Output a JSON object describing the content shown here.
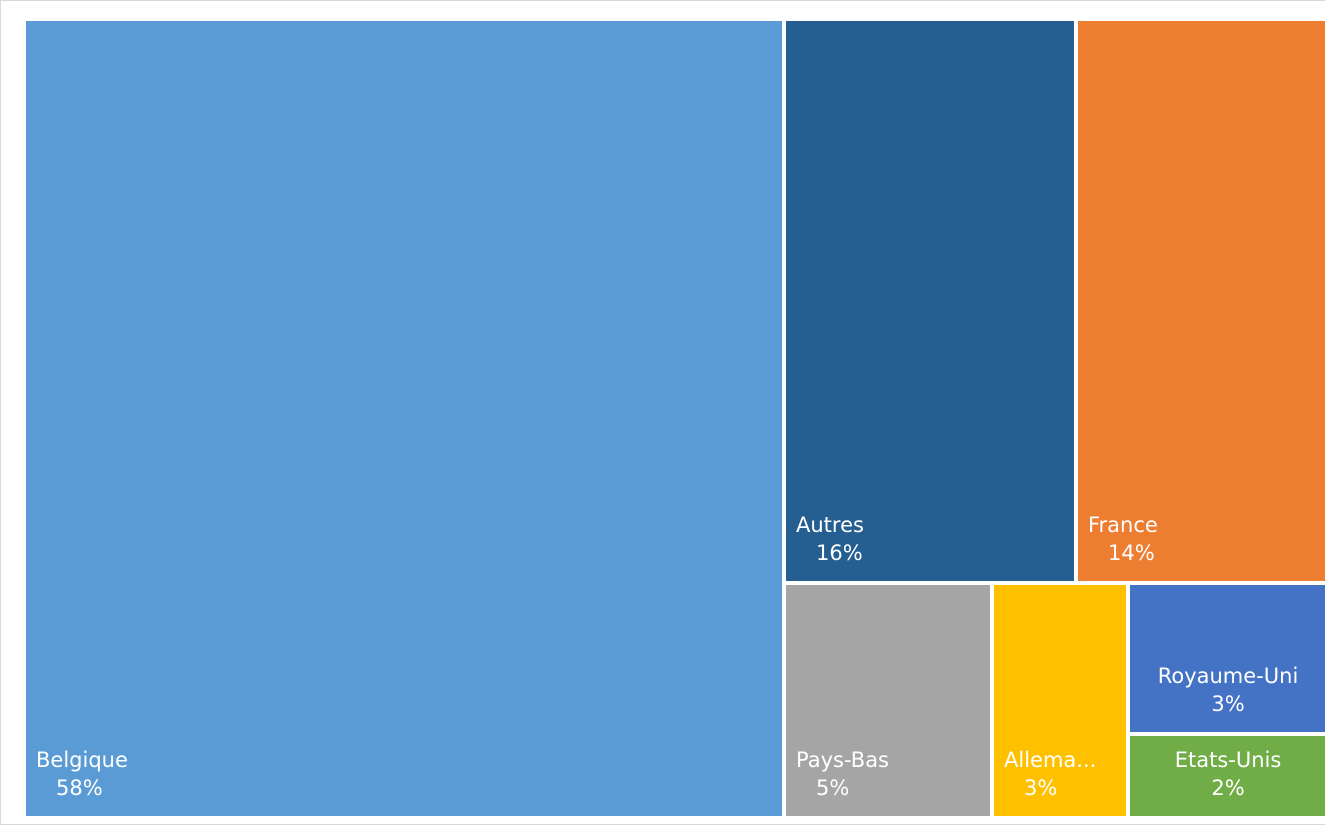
{
  "chart_data": {
    "type": "treemap",
    "title": "",
    "items": [
      {
        "label": "Belgique",
        "display_label": "Belgique",
        "value": 58,
        "value_label": "58%",
        "color": "#5b9bd5"
      },
      {
        "label": "Autres",
        "display_label": "Autres",
        "value": 16,
        "value_label": "16%",
        "color": "#255e91"
      },
      {
        "label": "France",
        "display_label": "France",
        "value": 14,
        "value_label": "14%",
        "color": "#ed7d31"
      },
      {
        "label": "Pays-Bas",
        "display_label": "Pays-Bas",
        "value": 5,
        "value_label": "5%",
        "color": "#a5a5a5"
      },
      {
        "label": "Allemagne",
        "display_label": "Allema...",
        "value": 3,
        "value_label": "3%",
        "color": "#ffc000"
      },
      {
        "label": "Royaume-Uni",
        "display_label": "Royaume-Uni",
        "value": 3,
        "value_label": "3%",
        "color": "#4472c4"
      },
      {
        "label": "Etats-Unis",
        "display_label": "Etats-Unis",
        "value": 2,
        "value_label": "2%",
        "color": "#70ad47"
      }
    ]
  }
}
